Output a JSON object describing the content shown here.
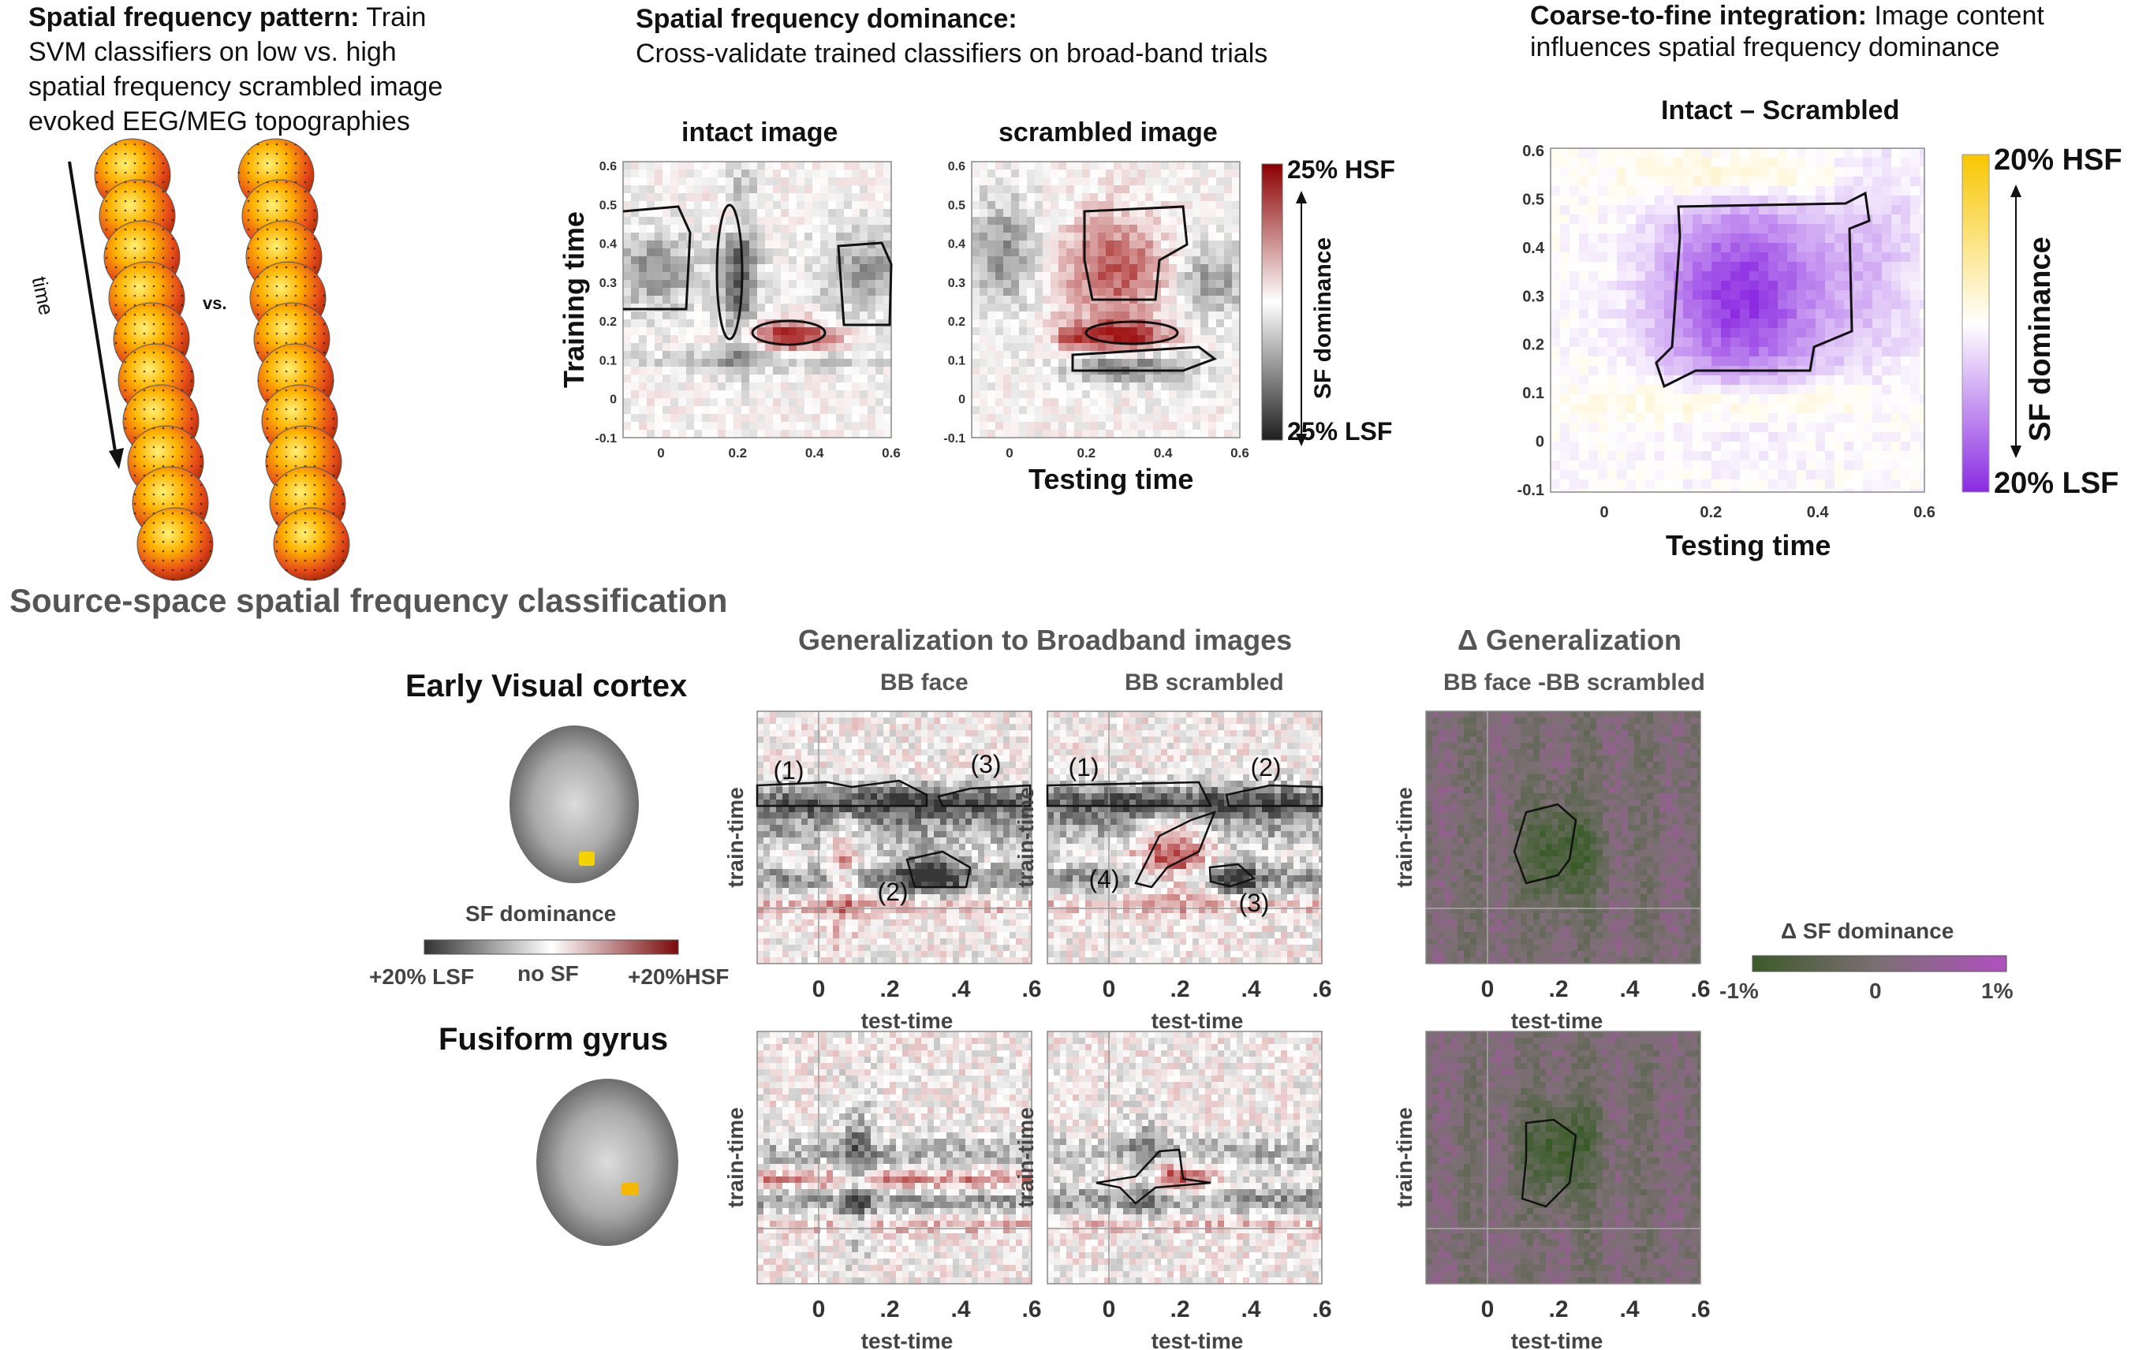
{
  "colors": {
    "hsf": "#8b0000",
    "lsf": "#333333",
    "hsf_light": "#f2a0a0",
    "purple": "#8a2be2",
    "yellow": "#f7c600",
    "green": "#3d5a2a",
    "magenta": "#a040a0",
    "head_hot": "#ffd000",
    "head_cold": "#a11a00"
  },
  "top_left": {
    "title_bold": "Spatial frequency pattern:",
    "title_rest": " Train",
    "lines": [
      "SVM classifiers on low vs. high",
      "spatial frequency scrambled image",
      "evoked EEG/MEG topographies"
    ],
    "time_label": "time",
    "vs_label": "vs.",
    "icons": [
      "head-topography-icon"
    ]
  },
  "top_middle": {
    "title_bold": "Spatial frequency dominance:",
    "subtitle": "Cross-validate trained classifiers on broad-band trials",
    "panel_titles": [
      "intact image",
      "scrambled image"
    ],
    "ylabel": "Training time",
    "xlabel": "Testing time",
    "ticks_y": [
      "0.6",
      "0.5",
      "0.4",
      "0.3",
      "0.2",
      "0.1",
      "0",
      "-0.1"
    ],
    "ticks_x": [
      "0",
      "0.2",
      "0.4",
      "0.6"
    ],
    "colorbar_top": "25% HSF",
    "colorbar_bottom": "25% LSF",
    "colorbar_label": "SF dominance"
  },
  "top_right": {
    "title_bold": "Coarse-to-fine integration:",
    "title_rest": " Image content",
    "line2": "influences spatial frequency dominance",
    "panel_title": "Intact – Scrambled",
    "ticks_y": [
      "0.6",
      "0.5",
      "0.4",
      "0.3",
      "0.2",
      "0.1",
      "0",
      "-0.1"
    ],
    "ticks_x": [
      "0",
      "0.2",
      "0.4",
      "0.6"
    ],
    "xlabel": "Testing time",
    "colorbar_top": "20% HSF",
    "colorbar_bottom": "20% LSF",
    "colorbar_label": "SF dominance"
  },
  "bottom": {
    "section_title": "Source-space spatial frequency classification",
    "gen_title": "Generalization to Broadband images",
    "delta_title": "Δ Generalization",
    "col_titles": [
      "BB face",
      "BB scrambled",
      "BB face -BB scrambled"
    ],
    "rows": [
      {
        "label": "Early Visual cortex"
      },
      {
        "label": "Fusiform gyrus"
      }
    ],
    "ylabel": "train-time",
    "xlabel": "test-time",
    "ticks_x": [
      "0",
      ".2",
      ".4",
      ".6"
    ],
    "sf_legend": {
      "title": "SF dominance",
      "left": "+20% LSF",
      "mid": "no SF",
      "right": "+20%HSF"
    },
    "delta_legend": {
      "title": "Δ SF dominance",
      "left": "-1%",
      "mid": "0",
      "right": "1%"
    },
    "annotations_face": [
      "(1)",
      "(3)",
      "(2)"
    ],
    "annotations_scr": [
      "(1)",
      "(2)",
      "(4)",
      "(3)"
    ]
  }
}
